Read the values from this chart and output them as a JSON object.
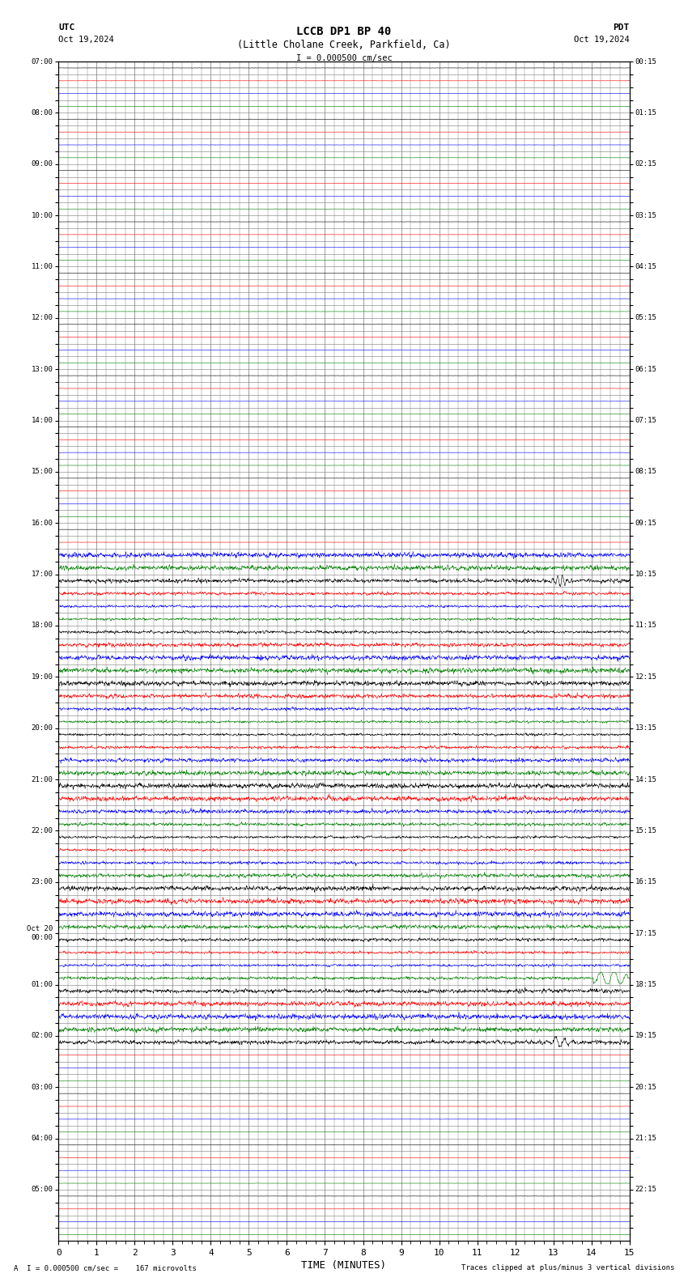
{
  "title_line1": "LCCB DP1 BP 40",
  "title_line2": "(Little Cholane Creek, Parkfield, Ca)",
  "scale_label": "I = 0.000500 cm/sec",
  "left_label": "UTC",
  "right_label": "PDT",
  "left_date": "Oct 19,2024",
  "right_date": "Oct 19,2024",
  "xlabel": "TIME (MINUTES)",
  "bottom_left": "A  I = 0.000500 cm/sec =    167 microvolts",
  "bottom_right": "Traces clipped at plus/minus 3 vertical divisions",
  "xmin": 0,
  "xmax": 15,
  "background_color": "white",
  "grid_color": "#777777",
  "trace_noise_amp": 0.1,
  "quiet_amp": 0.006
}
